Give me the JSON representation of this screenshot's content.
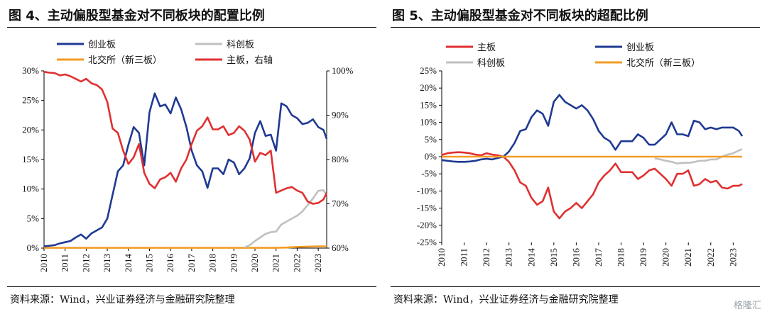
{
  "figures": [
    {
      "title": "图 4、主动偏股型基金对不同板块的配置比例",
      "source": "资料来源：Wind，兴业证券经济与金融研究院整理"
    },
    {
      "title": "图 5、主动偏股型基金对不同板块的超配比例",
      "source": "资料来源：Wind，兴业证券经济与金融研究院整理"
    }
  ],
  "watermark": "格隆汇",
  "colors": {
    "chinext": "#1f3a93",
    "star": "#c0c0c0",
    "bse": "#f39c26",
    "main": "#e03030"
  },
  "chart_data": [
    {
      "type": "line",
      "title": "图 4、主动偏股型基金对不同板块的配置比例",
      "x_ticks": [
        "2010",
        "2011",
        "2012",
        "2013",
        "2014",
        "2015",
        "2016",
        "2017",
        "2018",
        "2019",
        "2020",
        "2021",
        "2022",
        "2023"
      ],
      "xlim": [
        2010,
        2023.4
      ],
      "ylim_left": [
        0,
        30
      ],
      "yticks_left": [
        "0%",
        "5%",
        "10%",
        "15%",
        "20%",
        "25%",
        "30%"
      ],
      "ylim_right": [
        60,
        100
      ],
      "yticks_right": [
        "60%",
        "70%",
        "80%",
        "90%",
        "100%"
      ],
      "legend": [
        "创业板",
        "科创板",
        "北交所（新三板）",
        "主板，右轴"
      ],
      "series": [
        {
          "name": "创业板",
          "axis": "left",
          "color": "#1f3a93",
          "x": [
            2010,
            2010.25,
            2010.5,
            2010.75,
            2011,
            2011.25,
            2011.5,
            2011.75,
            2012,
            2012.25,
            2012.5,
            2012.75,
            2013,
            2013.25,
            2013.5,
            2013.75,
            2014,
            2014.25,
            2014.5,
            2014.75,
            2015,
            2015.25,
            2015.5,
            2015.75,
            2016,
            2016.25,
            2016.5,
            2016.75,
            2017,
            2017.25,
            2017.5,
            2017.75,
            2018,
            2018.25,
            2018.5,
            2018.75,
            2019,
            2019.25,
            2019.5,
            2019.75,
            2020,
            2020.25,
            2020.5,
            2020.75,
            2021,
            2021.25,
            2021.5,
            2021.75,
            2022,
            2022.25,
            2022.5,
            2022.75,
            2023,
            2023.25,
            2023.4
          ],
          "values": [
            0.3,
            0.4,
            0.5,
            0.8,
            1.0,
            1.2,
            1.8,
            2.3,
            1.6,
            2.5,
            3.0,
            3.5,
            5.0,
            9.0,
            13.0,
            14.0,
            17.5,
            20.5,
            19.5,
            14.0,
            23.0,
            26.2,
            24.0,
            24.3,
            22.8,
            25.5,
            23.5,
            20.5,
            16.5,
            14.0,
            13.0,
            10.2,
            13.5,
            13.5,
            12.5,
            15.0,
            14.5,
            12.5,
            13.5,
            15.2,
            19.5,
            21.5,
            19.0,
            19.2,
            16.5,
            24.5,
            24.0,
            22.5,
            22.0,
            21.0,
            21.2,
            21.8,
            20.5,
            20.0,
            18.5
          ]
        },
        {
          "name": "科创板",
          "axis": "left",
          "color": "#c0c0c0",
          "x": [
            2019.5,
            2019.75,
            2020,
            2020.25,
            2020.5,
            2020.75,
            2021,
            2021.25,
            2021.5,
            2021.75,
            2022,
            2022.25,
            2022.5,
            2022.75,
            2023,
            2023.25,
            2023.4
          ],
          "values": [
            0.1,
            0.5,
            1.2,
            1.8,
            2.4,
            2.7,
            2.8,
            4.0,
            4.5,
            5.0,
            5.5,
            6.2,
            7.3,
            8.4,
            9.7,
            9.8,
            9.0
          ]
        },
        {
          "name": "北交所（新三板）",
          "axis": "left",
          "color": "#f39c26",
          "x": [
            2010,
            2021,
            2021.5,
            2022,
            2023,
            2023.4
          ],
          "values": [
            0.05,
            0.05,
            0.1,
            0.2,
            0.3,
            0.3
          ]
        },
        {
          "name": "主板，右轴",
          "axis": "right",
          "color": "#e03030",
          "x": [
            2010,
            2010.25,
            2010.5,
            2010.75,
            2011,
            2011.25,
            2011.5,
            2011.75,
            2012,
            2012.25,
            2012.5,
            2012.75,
            2013,
            2013.25,
            2013.5,
            2013.75,
            2014,
            2014.25,
            2014.5,
            2014.75,
            2015,
            2015.25,
            2015.5,
            2015.75,
            2016,
            2016.25,
            2016.5,
            2016.75,
            2017,
            2017.25,
            2017.5,
            2017.75,
            2018,
            2018.25,
            2018.5,
            2018.75,
            2019,
            2019.25,
            2019.5,
            2019.75,
            2020,
            2020.25,
            2020.5,
            2020.75,
            2021,
            2021.25,
            2021.5,
            2021.75,
            2022,
            2022.25,
            2022.5,
            2022.75,
            2023,
            2023.25,
            2023.4
          ],
          "values": [
            99.8,
            99.6,
            99.5,
            99.0,
            99.2,
            98.8,
            98.2,
            97.6,
            98.2,
            97.2,
            96.8,
            95.8,
            93.0,
            87.0,
            86.0,
            82.0,
            79.0,
            80.5,
            83.5,
            77.0,
            74.5,
            73.5,
            75.5,
            76.0,
            77.0,
            75.0,
            78.0,
            80.0,
            83.5,
            86.5,
            87.5,
            89.5,
            86.8,
            86.8,
            87.5,
            85.5,
            86.0,
            87.5,
            86.5,
            84.5,
            79.5,
            81.5,
            81.0,
            82.0,
            72.5,
            73.0,
            73.5,
            73.8,
            73.0,
            72.5,
            70.5,
            70.0,
            70.2,
            71.0,
            72.5
          ]
        }
      ]
    },
    {
      "type": "line",
      "title": "图 5、主动偏股型基金对不同板块的超配比例",
      "x_ticks": [
        "2010",
        "2011",
        "2012",
        "2013",
        "2014",
        "2015",
        "2016",
        "2017",
        "2018",
        "2019",
        "2020",
        "2021",
        "2022",
        "2023"
      ],
      "xlim": [
        2010,
        2023.4
      ],
      "ylim": [
        -25,
        25
      ],
      "yticks": [
        "-25%",
        "-20%",
        "-15%",
        "-10%",
        "-5%",
        "0%",
        "5%",
        "10%",
        "15%",
        "20%",
        "25%"
      ],
      "legend": [
        "主板",
        "创业板",
        "科创板",
        "北交所（新三板）"
      ],
      "series": [
        {
          "name": "主板",
          "color": "#e03030",
          "x": [
            2010,
            2010.25,
            2010.5,
            2010.75,
            2011,
            2011.25,
            2011.5,
            2011.75,
            2012,
            2012.25,
            2012.5,
            2012.75,
            2013,
            2013.25,
            2013.5,
            2013.75,
            2014,
            2014.25,
            2014.5,
            2014.75,
            2015,
            2015.25,
            2015.5,
            2015.75,
            2016,
            2016.25,
            2016.5,
            2016.75,
            2017,
            2017.25,
            2017.5,
            2017.75,
            2018,
            2018.25,
            2018.5,
            2018.75,
            2019,
            2019.25,
            2019.5,
            2019.75,
            2020,
            2020.25,
            2020.5,
            2020.75,
            2021,
            2021.25,
            2021.5,
            2021.75,
            2022,
            2022.25,
            2022.5,
            2022.75,
            2023,
            2023.25,
            2023.4
          ],
          "values": [
            0.5,
            1.0,
            1.2,
            1.3,
            1.2,
            1.0,
            0.6,
            0.4,
            1.0,
            0.6,
            0.4,
            0.0,
            -1.5,
            -4.0,
            -7.5,
            -8.5,
            -12.0,
            -14.0,
            -13.0,
            -9.0,
            -16.0,
            -18.0,
            -16.0,
            -15.0,
            -13.5,
            -15.0,
            -13.0,
            -11.0,
            -7.5,
            -5.5,
            -4.0,
            -2.0,
            -4.5,
            -4.5,
            -4.5,
            -6.5,
            -5.5,
            -4.0,
            -3.5,
            -5.0,
            -6.5,
            -8.5,
            -5.0,
            -5.0,
            -4.0,
            -8.5,
            -8.0,
            -6.5,
            -7.5,
            -7.0,
            -9.0,
            -9.3,
            -8.5,
            -8.5,
            -8.0
          ]
        },
        {
          "name": "创业板",
          "color": "#1f3a93",
          "x": [
            2010,
            2010.25,
            2010.5,
            2010.75,
            2011,
            2011.25,
            2011.5,
            2011.75,
            2012,
            2012.25,
            2012.5,
            2012.75,
            2013,
            2013.25,
            2013.5,
            2013.75,
            2014,
            2014.25,
            2014.5,
            2014.75,
            2015,
            2015.25,
            2015.5,
            2015.75,
            2016,
            2016.25,
            2016.5,
            2016.75,
            2017,
            2017.25,
            2017.5,
            2017.75,
            2018,
            2018.25,
            2018.5,
            2018.75,
            2019,
            2019.25,
            2019.5,
            2019.75,
            2020,
            2020.25,
            2020.5,
            2020.75,
            2021,
            2021.25,
            2021.5,
            2021.75,
            2022,
            2022.25,
            2022.5,
            2022.75,
            2023,
            2023.25,
            2023.4
          ],
          "values": [
            -1.0,
            -1.2,
            -1.4,
            -1.5,
            -1.5,
            -1.4,
            -1.2,
            -0.8,
            -0.6,
            -0.8,
            -0.4,
            0.0,
            1.5,
            4.0,
            7.5,
            8.0,
            11.5,
            13.5,
            12.5,
            9.0,
            16.0,
            18.0,
            16.0,
            15.0,
            14.0,
            15.0,
            13.5,
            11.0,
            7.5,
            5.5,
            4.5,
            2.0,
            4.5,
            4.5,
            4.5,
            6.5,
            5.5,
            3.5,
            3.5,
            5.0,
            6.5,
            10.0,
            6.5,
            6.5,
            6.0,
            10.5,
            10.0,
            8.0,
            8.5,
            8.0,
            8.5,
            8.5,
            8.5,
            7.5,
            6.0
          ]
        },
        {
          "name": "科创板",
          "color": "#c0c0c0",
          "x": [
            2019.5,
            2019.75,
            2020,
            2020.25,
            2020.5,
            2020.75,
            2021,
            2021.25,
            2021.5,
            2021.75,
            2022,
            2022.25,
            2022.5,
            2022.75,
            2023,
            2023.25,
            2023.4
          ],
          "values": [
            -0.5,
            -0.8,
            -1.2,
            -1.5,
            -2.0,
            -1.8,
            -1.8,
            -1.6,
            -1.2,
            -1.2,
            -0.8,
            -0.8,
            0.0,
            0.6,
            1.0,
            1.8,
            2.2
          ]
        },
        {
          "name": "北交所（新三板）",
          "color": "#f39c26",
          "x": [
            2010,
            2023.4
          ],
          "values": [
            0.0,
            0.0
          ]
        }
      ]
    }
  ]
}
